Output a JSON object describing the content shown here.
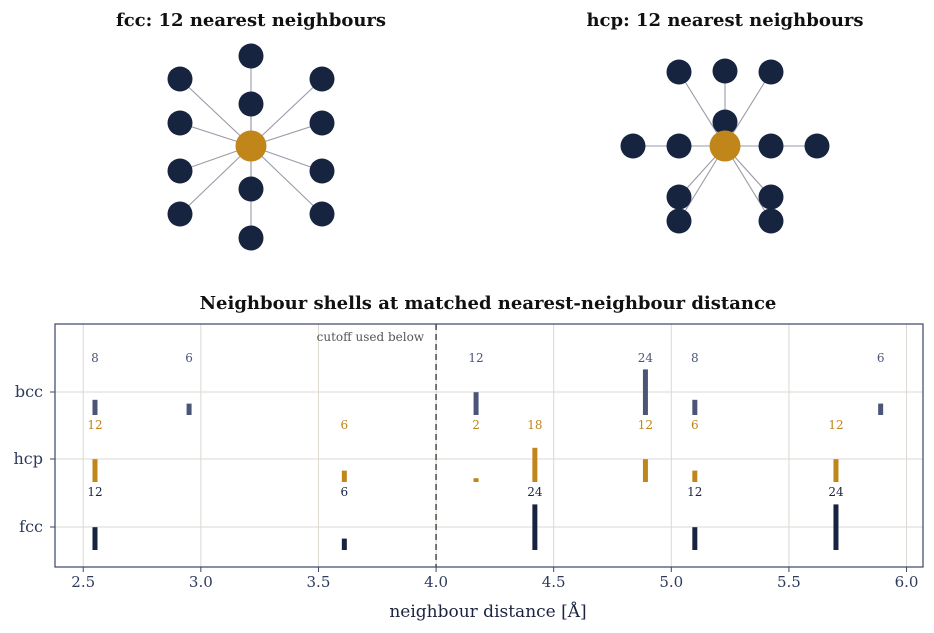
{
  "chart_data": [
    {
      "type": "diagram",
      "title": "fcc: 12 nearest neighbours",
      "center_atom_color": "#c0861a",
      "neighbour_atom_color": "#172440",
      "bond_color": "#9a9aa8",
      "neighbour_count": 12
    },
    {
      "type": "diagram",
      "title": "hcp: 12 nearest neighbours",
      "center_atom_color": "#c0861a",
      "neighbour_atom_color": "#172440",
      "bond_color": "#9a9aa8",
      "neighbour_count": 12
    },
    {
      "type": "bar",
      "title": "Neighbour shells at matched nearest-neighbour distance",
      "xlabel": "neighbour distance  [Å]",
      "ylabel": "",
      "xlim": [
        2.38,
        6.07
      ],
      "xticks": [
        2.5,
        3.0,
        3.5,
        4.0,
        4.5,
        5.0,
        5.5,
        6.0
      ],
      "xtick_labels": [
        "2.5",
        "3.0",
        "3.5",
        "4.0",
        "4.5",
        "5.0",
        "5.5",
        "6.0"
      ],
      "categories": [
        "bcc",
        "hcp",
        "fcc"
      ],
      "grid": true,
      "cutoff": {
        "x": 4.0,
        "label": "cutoff used below"
      },
      "series": [
        {
          "name": "bcc",
          "color": "#4a5577",
          "label_color": "#4a5577",
          "points": [
            {
              "x": 2.55,
              "count": 8
            },
            {
              "x": 2.95,
              "count": 6
            },
            {
              "x": 4.17,
              "count": 12
            },
            {
              "x": 4.89,
              "count": 24
            },
            {
              "x": 5.1,
              "count": 8
            },
            {
              "x": 5.89,
              "count": 6
            }
          ]
        },
        {
          "name": "hcp",
          "color": "#c0861a",
          "label_color": "#c0861a",
          "points": [
            {
              "x": 2.55,
              "count": 12
            },
            {
              "x": 3.61,
              "count": 6
            },
            {
              "x": 4.17,
              "count": 2
            },
            {
              "x": 4.42,
              "count": 18
            },
            {
              "x": 4.89,
              "count": 12
            },
            {
              "x": 5.1,
              "count": 6
            },
            {
              "x": 5.7,
              "count": 12
            }
          ]
        },
        {
          "name": "fcc",
          "color": "#172440",
          "label_color": "#172440",
          "points": [
            {
              "x": 2.55,
              "count": 12
            },
            {
              "x": 3.61,
              "count": 6
            },
            {
              "x": 4.42,
              "count": 24
            },
            {
              "x": 5.1,
              "count": 12
            },
            {
              "x": 5.7,
              "count": 24
            }
          ]
        }
      ]
    }
  ]
}
